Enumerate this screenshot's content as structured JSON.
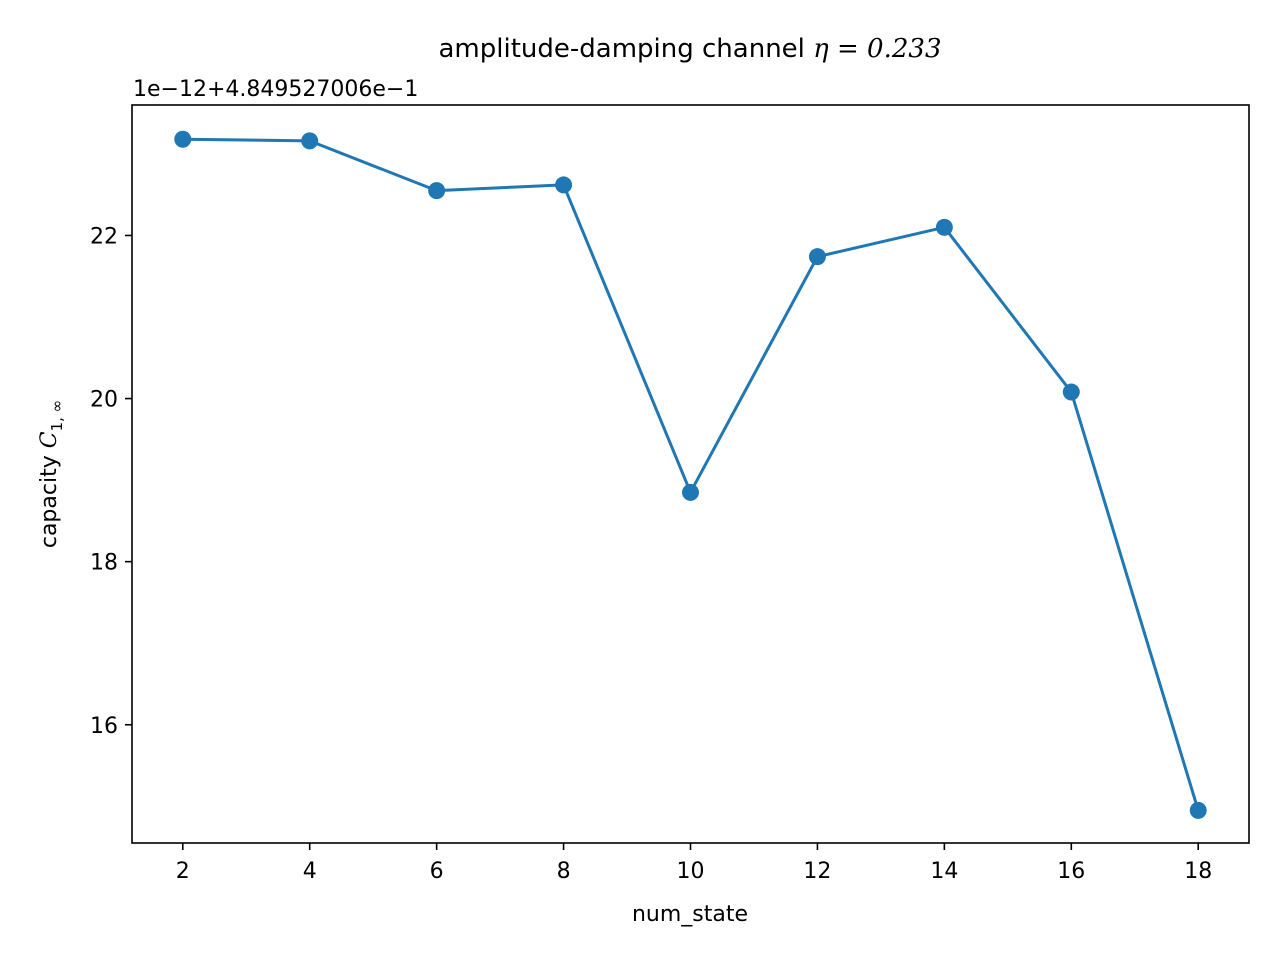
{
  "chart_data": {
    "type": "line",
    "title": "amplitude-damping channel",
    "title_math": "η = 0.233",
    "xlabel": "num_state",
    "ylabel": "capacity",
    "ylabel_math_main": "C",
    "ylabel_math_sub": "1, ∞",
    "y_offset_label": "1e−12+4.849527006e−1",
    "x": [
      2,
      4,
      6,
      8,
      10,
      12,
      14,
      16,
      18
    ],
    "series": [
      {
        "values": [
          23.18,
          23.16,
          22.55,
          22.62,
          18.85,
          21.74,
          22.1,
          20.08,
          14.95
        ],
        "color": "#1f77b4",
        "marker": "circle"
      }
    ],
    "xlim": [
      1.2,
      18.8
    ],
    "ylim": [
      14.55,
      23.6
    ],
    "xticks": [
      2,
      4,
      6,
      8,
      10,
      12,
      14,
      16,
      18
    ],
    "yticks": [
      16,
      18,
      20,
      22
    ],
    "grid": false,
    "legend": "none"
  }
}
